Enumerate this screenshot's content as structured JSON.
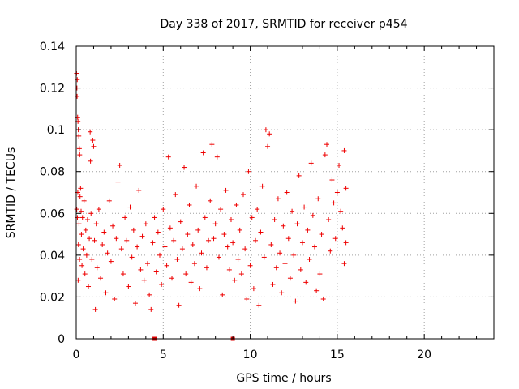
{
  "chart_data": {
    "type": "scatter",
    "title": "Day 338 of 2017, SRMTID for receiver p454",
    "xlabel": "GPS time / hours",
    "ylabel": "SRMTID / TECUs",
    "xlim": [
      0,
      24
    ],
    "ylim": [
      0,
      0.14
    ],
    "xticks": [
      0,
      5,
      10,
      15,
      20
    ],
    "xtick_labels": [
      "0",
      "5",
      "10",
      "15",
      "20"
    ],
    "yticks": [
      0,
      0.02,
      0.04,
      0.06,
      0.08,
      0.1,
      0.12,
      0.14
    ],
    "ytick_labels": [
      "0",
      "0.02",
      "0.04",
      "0.06",
      "0.08",
      "0.1",
      "0.12",
      "0.14"
    ],
    "grid": true,
    "marker": "+",
    "color": "#ee0000",
    "zero_markers_x": [
      4.5,
      9.0
    ],
    "series": [
      {
        "name": "SRMTID",
        "points": [
          [
            0.02,
            0.127
          ],
          [
            0.04,
            0.12
          ],
          [
            0.05,
            0.116
          ],
          [
            0.06,
            0.124
          ],
          [
            0.08,
            0.106
          ],
          [
            0.1,
            0.104
          ],
          [
            0.12,
            0.1
          ],
          [
            0.15,
            0.097
          ],
          [
            0.18,
            0.091
          ],
          [
            0.2,
            0.088
          ],
          [
            0.03,
            0.062
          ],
          [
            0.07,
            0.058
          ],
          [
            0.09,
            0.07
          ],
          [
            0.11,
            0.028
          ],
          [
            0.13,
            0.045
          ],
          [
            0.16,
            0.055
          ],
          [
            0.19,
            0.038
          ],
          [
            0.22,
            0.068
          ],
          [
            0.25,
            0.072
          ],
          [
            0.28,
            0.061
          ],
          [
            0.3,
            0.05
          ],
          [
            0.33,
            0.035
          ],
          [
            0.36,
            0.058
          ],
          [
            0.4,
            0.043
          ],
          [
            0.45,
            0.066
          ],
          [
            0.5,
            0.031
          ],
          [
            0.55,
            0.052
          ],
          [
            0.6,
            0.04
          ],
          [
            0.65,
            0.057
          ],
          [
            0.7,
            0.025
          ],
          [
            0.75,
            0.048
          ],
          [
            0.8,
            0.099
          ],
          [
            0.82,
            0.085
          ],
          [
            0.85,
            0.06
          ],
          [
            0.9,
            0.038
          ],
          [
            0.95,
            0.095
          ],
          [
            1.0,
            0.092
          ],
          [
            1.05,
            0.047
          ],
          [
            1.1,
            0.014
          ],
          [
            1.15,
            0.055
          ],
          [
            1.2,
            0.034
          ],
          [
            1.3,
            0.062
          ],
          [
            1.4,
            0.029
          ],
          [
            1.5,
            0.045
          ],
          [
            1.6,
            0.051
          ],
          [
            1.7,
            0.022
          ],
          [
            1.8,
            0.041
          ],
          [
            1.9,
            0.066
          ],
          [
            2.0,
            0.037
          ],
          [
            2.1,
            0.054
          ],
          [
            2.2,
            0.019
          ],
          [
            2.3,
            0.048
          ],
          [
            2.4,
            0.075
          ],
          [
            2.5,
            0.083
          ],
          [
            2.6,
            0.043
          ],
          [
            2.7,
            0.031
          ],
          [
            2.8,
            0.058
          ],
          [
            2.9,
            0.047
          ],
          [
            3.0,
            0.025
          ],
          [
            3.1,
            0.063
          ],
          [
            3.2,
            0.039
          ],
          [
            3.3,
            0.052
          ],
          [
            3.4,
            0.017
          ],
          [
            3.5,
            0.044
          ],
          [
            3.6,
            0.071
          ],
          [
            3.7,
            0.033
          ],
          [
            3.8,
            0.049
          ],
          [
            3.9,
            0.028
          ],
          [
            4.0,
            0.055
          ],
          [
            4.1,
            0.036
          ],
          [
            4.2,
            0.021
          ],
          [
            4.3,
            0.014
          ],
          [
            4.4,
            0.046
          ],
          [
            4.5,
            0.058
          ],
          [
            4.6,
            0.032
          ],
          [
            4.7,
            0.051
          ],
          [
            4.8,
            0.04
          ],
          [
            4.9,
            0.026
          ],
          [
            5.0,
            0.062
          ],
          [
            5.1,
            0.044
          ],
          [
            5.2,
            0.035
          ],
          [
            5.3,
            0.087
          ],
          [
            5.4,
            0.053
          ],
          [
            5.5,
            0.029
          ],
          [
            5.6,
            0.047
          ],
          [
            5.7,
            0.069
          ],
          [
            5.8,
            0.038
          ],
          [
            5.9,
            0.016
          ],
          [
            6.0,
            0.056
          ],
          [
            6.1,
            0.043
          ],
          [
            6.2,
            0.082
          ],
          [
            6.3,
            0.031
          ],
          [
            6.4,
            0.05
          ],
          [
            6.5,
            0.064
          ],
          [
            6.6,
            0.027
          ],
          [
            6.7,
            0.045
          ],
          [
            6.8,
            0.036
          ],
          [
            6.9,
            0.073
          ],
          [
            7.0,
            0.052
          ],
          [
            7.1,
            0.024
          ],
          [
            7.2,
            0.041
          ],
          [
            7.3,
            0.089
          ],
          [
            7.4,
            0.058
          ],
          [
            7.5,
            0.034
          ],
          [
            7.6,
            0.047
          ],
          [
            7.7,
            0.066
          ],
          [
            7.8,
            0.093
          ],
          [
            7.9,
            0.048
          ],
          [
            8.0,
            0.055
          ],
          [
            8.1,
            0.087
          ],
          [
            8.2,
            0.039
          ],
          [
            8.3,
            0.062
          ],
          [
            8.4,
            0.021
          ],
          [
            8.5,
            0.05
          ],
          [
            8.6,
            0.071
          ],
          [
            8.7,
            0.044
          ],
          [
            8.8,
            0.033
          ],
          [
            8.9,
            0.057
          ],
          [
            9.0,
            0.046
          ],
          [
            9.1,
            0.028
          ],
          [
            9.2,
            0.064
          ],
          [
            9.3,
            0.038
          ],
          [
            9.4,
            0.052
          ],
          [
            9.5,
            0.031
          ],
          [
            9.6,
            0.069
          ],
          [
            9.7,
            0.043
          ],
          [
            9.8,
            0.019
          ],
          [
            9.9,
            0.08
          ],
          [
            10.0,
            0.035
          ],
          [
            10.1,
            0.058
          ],
          [
            10.2,
            0.024
          ],
          [
            10.3,
            0.047
          ],
          [
            10.4,
            0.062
          ],
          [
            10.5,
            0.016
          ],
          [
            10.6,
            0.051
          ],
          [
            10.7,
            0.073
          ],
          [
            10.8,
            0.039
          ],
          [
            10.9,
            0.1
          ],
          [
            11.0,
            0.092
          ],
          [
            11.1,
            0.098
          ],
          [
            11.2,
            0.045
          ],
          [
            11.3,
            0.026
          ],
          [
            11.4,
            0.057
          ],
          [
            11.5,
            0.034
          ],
          [
            11.6,
            0.067
          ],
          [
            11.7,
            0.041
          ],
          [
            11.8,
            0.022
          ],
          [
            11.9,
            0.054
          ],
          [
            12.0,
            0.036
          ],
          [
            12.1,
            0.07
          ],
          [
            12.2,
            0.048
          ],
          [
            12.3,
            0.029
          ],
          [
            12.4,
            0.061
          ],
          [
            12.5,
            0.04
          ],
          [
            12.6,
            0.018
          ],
          [
            12.7,
            0.055
          ],
          [
            12.8,
            0.078
          ],
          [
            12.9,
            0.033
          ],
          [
            13.0,
            0.046
          ],
          [
            13.1,
            0.063
          ],
          [
            13.2,
            0.027
          ],
          [
            13.3,
            0.052
          ],
          [
            13.4,
            0.038
          ],
          [
            13.5,
            0.084
          ],
          [
            13.6,
            0.059
          ],
          [
            13.7,
            0.044
          ],
          [
            13.8,
            0.023
          ],
          [
            13.9,
            0.067
          ],
          [
            14.0,
            0.031
          ],
          [
            14.1,
            0.05
          ],
          [
            14.2,
            0.019
          ],
          [
            14.3,
            0.088
          ],
          [
            14.4,
            0.093
          ],
          [
            14.5,
            0.057
          ],
          [
            14.6,
            0.042
          ],
          [
            14.7,
            0.076
          ],
          [
            14.8,
            0.065
          ],
          [
            14.9,
            0.048
          ],
          [
            15.0,
            0.07
          ],
          [
            15.1,
            0.083
          ],
          [
            15.2,
            0.061
          ],
          [
            15.3,
            0.053
          ],
          [
            15.4,
            0.09
          ],
          [
            15.5,
            0.072
          ],
          [
            15.5,
            0.046
          ],
          [
            15.4,
            0.036
          ]
        ]
      }
    ]
  }
}
